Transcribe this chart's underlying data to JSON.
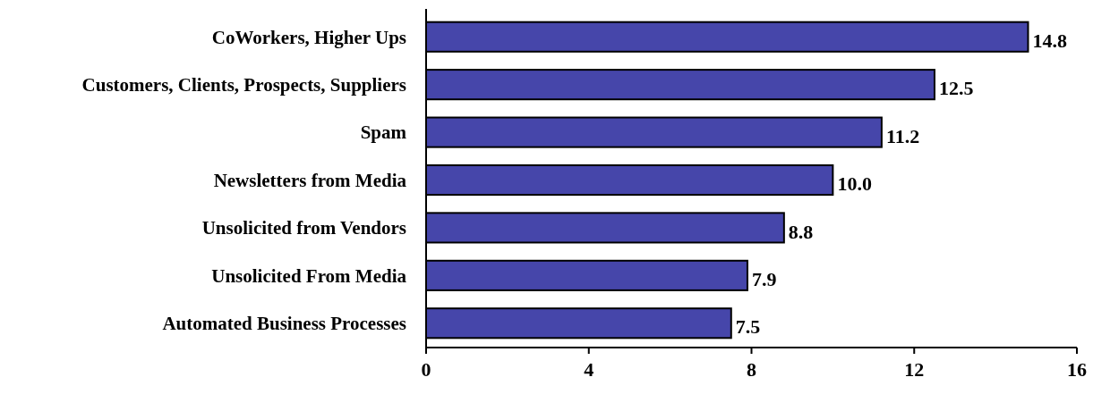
{
  "chart_data": {
    "type": "bar",
    "orientation": "horizontal",
    "categories": [
      "CoWorkers, Higher Ups",
      "Customers, Clients, Prospects, Suppliers",
      "Spam",
      "Newsletters from Media",
      "Unsolicited from Vendors",
      "Unsolicited From Media",
      "Automated Business Processes"
    ],
    "values": [
      14.8,
      12.5,
      11.2,
      10.0,
      8.8,
      7.9,
      7.5
    ],
    "value_labels": [
      "14.8",
      "12.5",
      "11.2",
      "10.0",
      "8.8",
      "7.9",
      "7.5"
    ],
    "color": "#4646aa",
    "xlim": [
      0,
      16
    ],
    "xticks": [
      0,
      4,
      8,
      12,
      16
    ],
    "grid": false
  }
}
